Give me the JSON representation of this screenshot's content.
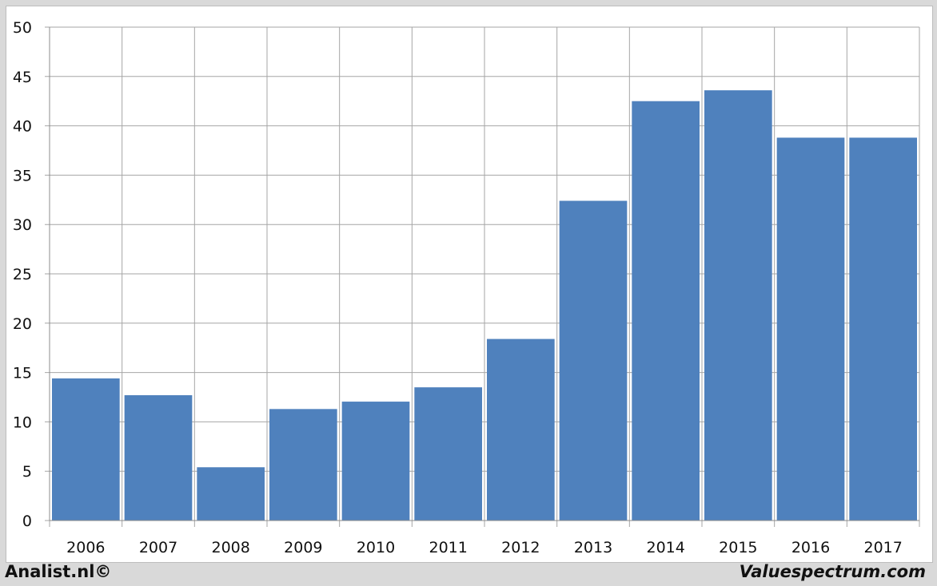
{
  "chart_data": {
    "type": "bar",
    "categories": [
      "2006",
      "2007",
      "2008",
      "2009",
      "2010",
      "2011",
      "2012",
      "2013",
      "2014",
      "2015",
      "2016",
      "2017"
    ],
    "values": [
      14.4,
      12.7,
      5.4,
      11.3,
      12.05,
      13.5,
      18.4,
      32.4,
      42.5,
      43.6,
      38.8,
      38.8
    ],
    "ylim": [
      0,
      50
    ],
    "yticks": [
      0,
      5,
      10,
      15,
      20,
      25,
      30,
      35,
      40,
      45,
      50
    ],
    "grid": true,
    "bar_color": "#4f81bd",
    "title": "",
    "xlabel": "",
    "ylabel": ""
  },
  "footer": {
    "left": "Analist.nl©",
    "right": "Valuespectrum.com"
  }
}
